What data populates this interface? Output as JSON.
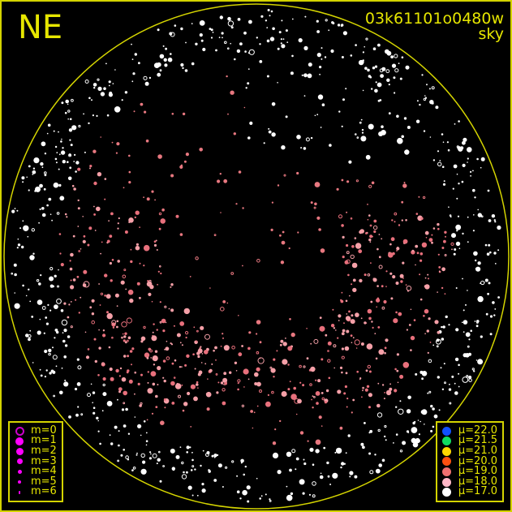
{
  "direction_label": "NE",
  "image_id_label": "03k61101o0480w",
  "frame_label": "sky",
  "magnitude_legend": [
    {
      "label": "m=0",
      "color": "#cc00cc",
      "hollow": true
    },
    {
      "label": "m=1",
      "color": "#ff00ff"
    },
    {
      "label": "m=2",
      "color": "#ff00ff"
    },
    {
      "label": "m=3",
      "color": "#ff00ff"
    },
    {
      "label": "m=4",
      "color": "#ff00ff"
    },
    {
      "label": "m=5",
      "color": "#ff00ff"
    },
    {
      "label": "m=6",
      "color": "#ff00ff"
    }
  ],
  "brightness_legend": [
    {
      "label": "μ=22.0",
      "color": "#1050ff"
    },
    {
      "label": "μ=21.5",
      "color": "#10dd60"
    },
    {
      "label": "μ=21.0",
      "color": "#ffd800"
    },
    {
      "label": "μ=20.0",
      "color": "#ff5010"
    },
    {
      "label": "μ=19.0",
      "color": "#f07070"
    },
    {
      "label": "μ=18.0",
      "color": "#ffb8c8"
    },
    {
      "label": "μ=17.0",
      "color": "#ffffff"
    }
  ],
  "colors": {
    "horizon": "#d4d400",
    "text": "#e6e600"
  }
}
